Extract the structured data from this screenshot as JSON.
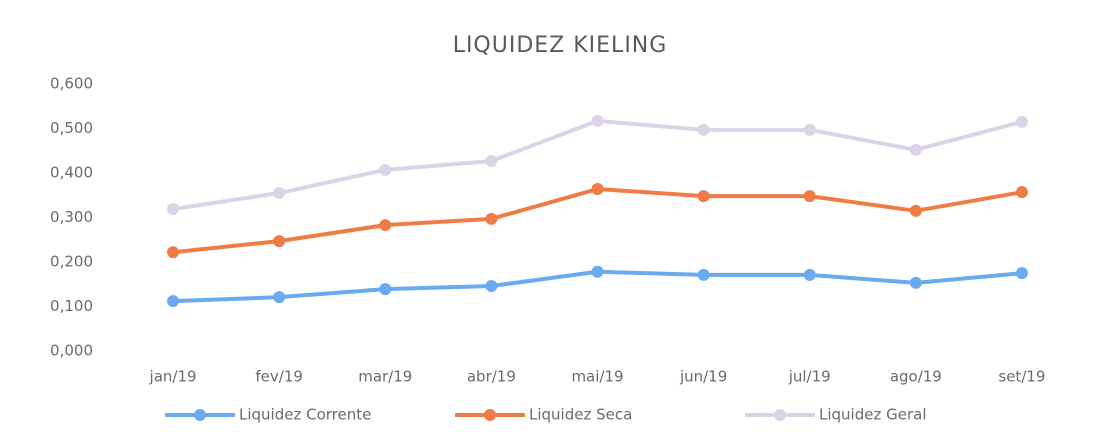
{
  "chart_data": {
    "type": "line",
    "title": "LIQUIDEZ KIELING",
    "categories": [
      "jan/19",
      "fev/19",
      "mar/19",
      "abr/19",
      "mai/19",
      "jun/19",
      "jul/19",
      "ago/19",
      "set/19"
    ],
    "series": [
      {
        "name": "Liquidez Corrente",
        "color": "#6aaaf0",
        "values": [
          0.112,
          0.121,
          0.139,
          0.146,
          0.178,
          0.171,
          0.171,
          0.153,
          0.175
        ]
      },
      {
        "name": "Liquidez Seca",
        "color": "#f07c45",
        "values": [
          0.222,
          0.247,
          0.283,
          0.297,
          0.364,
          0.348,
          0.348,
          0.315,
          0.357
        ]
      },
      {
        "name": "Liquidez Geral",
        "color": "#dcd4e6",
        "values": [
          0.319,
          0.355,
          0.407,
          0.427,
          0.517,
          0.497,
          0.497,
          0.452,
          0.515
        ]
      }
    ],
    "ylim": [
      0,
      0.6
    ],
    "yticks": [
      {
        "value": 0,
        "label": "0,000"
      },
      {
        "value": 0.1,
        "label": "0,100"
      },
      {
        "value": 0.2,
        "label": "0,200"
      },
      {
        "value": 0.3,
        "label": "0,300"
      },
      {
        "value": 0.4,
        "label": "0,400"
      },
      {
        "value": 0.5,
        "label": "0,500"
      },
      {
        "value": 0.6,
        "label": "0,600"
      }
    ],
    "legend": "bottom"
  }
}
